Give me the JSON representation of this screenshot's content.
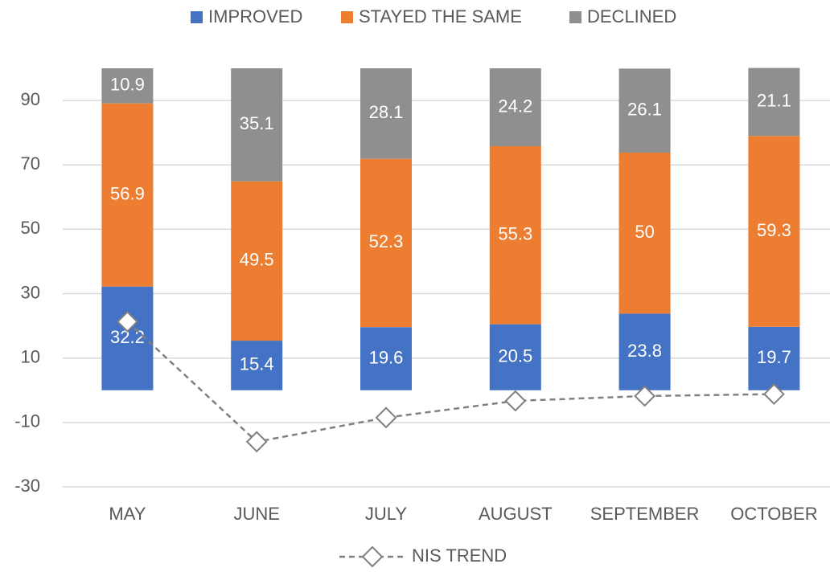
{
  "chart_data": {
    "type": "bar",
    "stacked": true,
    "categories": [
      "MAY",
      "JUNE",
      "JULY",
      "AUGUST",
      "SEPTEMBER",
      "OCTOBER"
    ],
    "series": [
      {
        "name": "IMPROVED",
        "color": "#4472c4",
        "values": [
          32.2,
          15.4,
          19.6,
          20.5,
          23.8,
          19.7
        ]
      },
      {
        "name": "STAYED THE SAME",
        "color": "#ed7d31",
        "values": [
          56.9,
          49.5,
          52.3,
          55.3,
          50,
          59.3
        ]
      },
      {
        "name": "DECLINED",
        "color": "#8f8f8f",
        "values": [
          10.9,
          35.1,
          28.1,
          24.2,
          26.1,
          21.1
        ]
      },
      {
        "name": "NIS TREND",
        "type": "line",
        "color": "#808080",
        "values": [
          21.3,
          -16,
          -8.5,
          -3.3,
          -1.8,
          -1.2
        ]
      }
    ],
    "ylim": [
      -30,
      100
    ],
    "yticks": [
      -30,
      -10,
      10,
      30,
      50,
      70,
      90
    ],
    "grid": true
  }
}
